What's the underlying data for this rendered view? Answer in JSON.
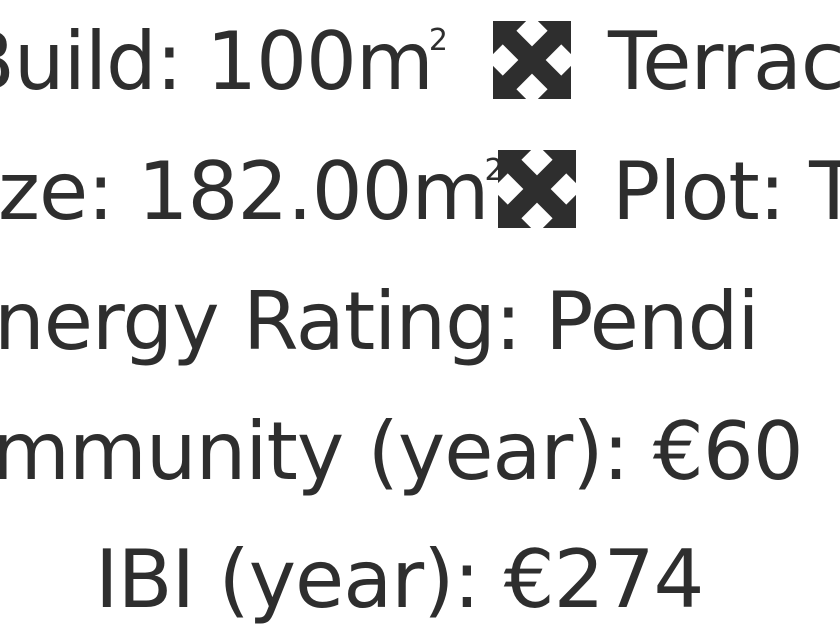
{
  "details": {
    "build": {
      "label": "Build: 100m",
      "unit_sup": "2",
      "icon": "expand-arrows-icon"
    },
    "terrace": {
      "label": "Terrac"
    },
    "size": {
      "label": "ze: 182.00m",
      "unit_sup": "2",
      "icon": "expand-arrows-icon"
    },
    "plot": {
      "label": "Plot: T"
    },
    "energy": {
      "label": "nergy Rating: Pendi"
    },
    "community": {
      "label": "mmunity (year): €60"
    },
    "ibi": {
      "label": "IBI (year): €274"
    }
  },
  "colors": {
    "text": "#2e2e2e",
    "icon": "#2e2e2e"
  }
}
